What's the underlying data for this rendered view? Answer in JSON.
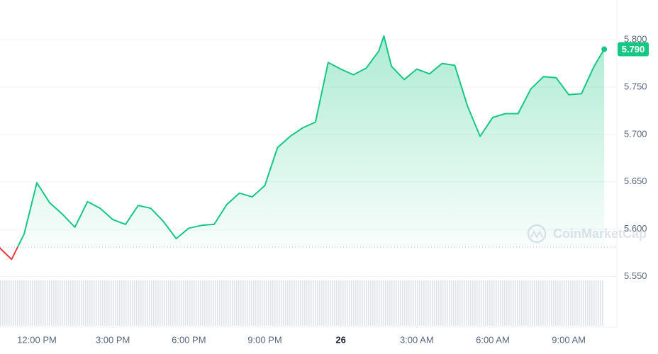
{
  "chart_data": {
    "type": "line",
    "x": [
      -1.5,
      -1.0,
      -0.5,
      0,
      0.5,
      1.0,
      1.5,
      2.0,
      2.5,
      3.0,
      3.5,
      4.0,
      4.5,
      5.0,
      5.5,
      6.0,
      6.5,
      7.0,
      7.5,
      8.0,
      8.5,
      9.0,
      9.5,
      10.0,
      10.5,
      11.0,
      11.5,
      12.0,
      12.5,
      13.0,
      13.5,
      13.7,
      14.0,
      14.5,
      15.0,
      15.5,
      16.0,
      16.5,
      17.0,
      17.5,
      18.0,
      18.5,
      19.0,
      19.5,
      20.0,
      20.5,
      21.0,
      21.5,
      22.0,
      22.4
    ],
    "series": [
      {
        "color": "#16c784",
        "values": [
          5.581,
          5.568,
          5.595,
          5.649,
          5.628,
          5.616,
          5.602,
          5.629,
          5.622,
          5.61,
          5.605,
          5.625,
          5.622,
          5.608,
          5.59,
          5.601,
          5.604,
          5.605,
          5.626,
          5.638,
          5.634,
          5.646,
          5.686,
          5.698,
          5.707,
          5.713,
          5.776,
          5.769,
          5.763,
          5.77,
          5.788,
          5.804,
          5.772,
          5.758,
          5.769,
          5.764,
          5.775,
          5.773,
          5.73,
          5.698,
          5.718,
          5.722,
          5.722,
          5.748,
          5.761,
          5.76,
          5.742,
          5.743,
          5.772,
          5.79
        ]
      }
    ],
    "last_value_label": "5.790",
    "baseline": 5.581,
    "down_color": "#ea3943",
    "xlim": [
      -1.456,
      22.9
    ],
    "xticks": [
      {
        "value": 0,
        "label": "12:00 PM"
      },
      {
        "value": 3,
        "label": "3:00 PM"
      },
      {
        "value": 6,
        "label": "6:00 PM"
      },
      {
        "value": 9,
        "label": "9:00 PM"
      },
      {
        "value": 12,
        "label": "26"
      },
      {
        "value": 15,
        "label": "3:00 AM"
      },
      {
        "value": 18,
        "label": "6:00 AM"
      },
      {
        "value": 21,
        "label": "9:00 AM"
      }
    ],
    "ylim": [
      5.498,
      5.842
    ],
    "yticks": [
      {
        "value": 5.55,
        "label": "5.550"
      },
      {
        "value": 5.6,
        "label": "5.600"
      },
      {
        "value": 5.65,
        "label": "5.650"
      },
      {
        "value": 5.7,
        "label": "5.700"
      },
      {
        "value": 5.75,
        "label": "5.750"
      },
      {
        "value": 5.8,
        "label": "5.800"
      }
    ],
    "grid": true,
    "watermark": "CoinMarketCap"
  }
}
